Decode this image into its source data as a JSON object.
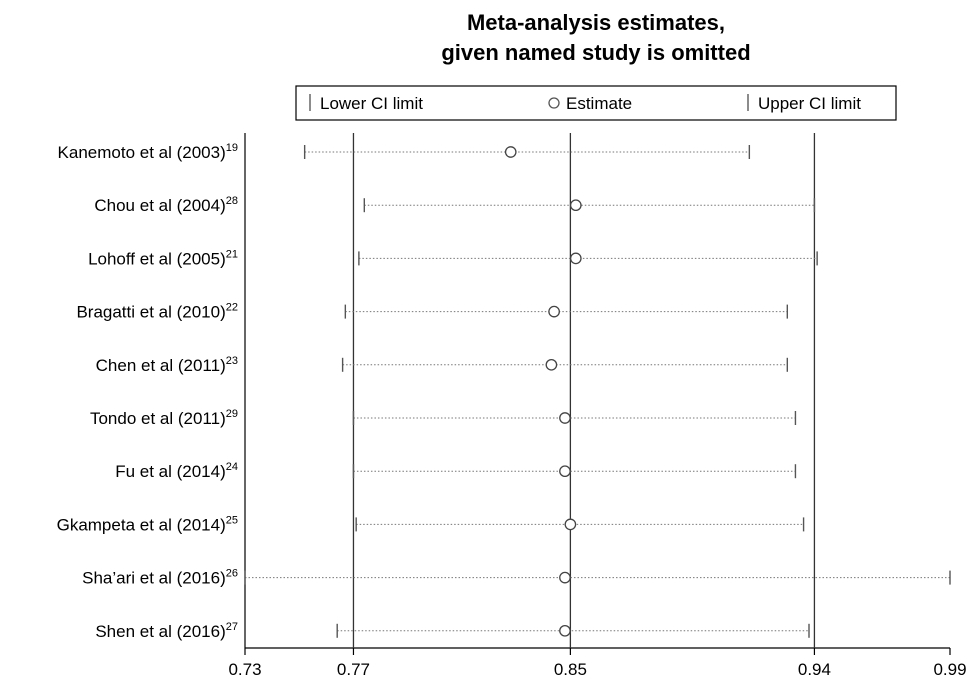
{
  "chart_data": {
    "type": "scatter",
    "title_lines": [
      "Meta-analysis estimates,",
      "given named study is omitted"
    ],
    "legend": {
      "lower": "Lower CI limit",
      "estimate": "Estimate",
      "upper": "Upper CI limit"
    },
    "xlim": [
      0.73,
      0.99
    ],
    "ticks": [
      {
        "value": 0.73,
        "label": "0.73"
      },
      {
        "value": 0.77,
        "label": "0.77"
      },
      {
        "value": 0.85,
        "label": "0.85"
      },
      {
        "value": 0.94,
        "label": "0.94"
      },
      {
        "value": 0.99,
        "label": "0.99"
      }
    ],
    "reference_lines": [
      0.77,
      0.85,
      0.94
    ],
    "studies": [
      {
        "name": "Kanemoto et al (2003)",
        "ref": "19",
        "lower": 0.752,
        "estimate": 0.828,
        "upper": 0.916
      },
      {
        "name": "Chou et al (2004)",
        "ref": "28",
        "lower": 0.774,
        "estimate": 0.852,
        "upper": 0.94
      },
      {
        "name": "Lohoff et al (2005)",
        "ref": "21",
        "lower": 0.772,
        "estimate": 0.852,
        "upper": 0.941
      },
      {
        "name": "Bragatti et al (2010)",
        "ref": "22",
        "lower": 0.767,
        "estimate": 0.844,
        "upper": 0.93
      },
      {
        "name": "Chen et al (2011)",
        "ref": "23",
        "lower": 0.766,
        "estimate": 0.843,
        "upper": 0.93
      },
      {
        "name": "Tondo et al (2011)",
        "ref": "29",
        "lower": 0.77,
        "estimate": 0.848,
        "upper": 0.933
      },
      {
        "name": "Fu et al (2014)",
        "ref": "24",
        "lower": 0.77,
        "estimate": 0.848,
        "upper": 0.933
      },
      {
        "name": "Gkampeta et al (2014)",
        "ref": "25",
        "lower": 0.771,
        "estimate": 0.85,
        "upper": 0.936
      },
      {
        "name": "Sha’ari et al (2016)",
        "ref": "26",
        "lower": 0.73,
        "estimate": 0.848,
        "upper": 0.99
      },
      {
        "name": "Shen et al (2016)",
        "ref": "27",
        "lower": 0.764,
        "estimate": 0.848,
        "upper": 0.938
      }
    ]
  }
}
